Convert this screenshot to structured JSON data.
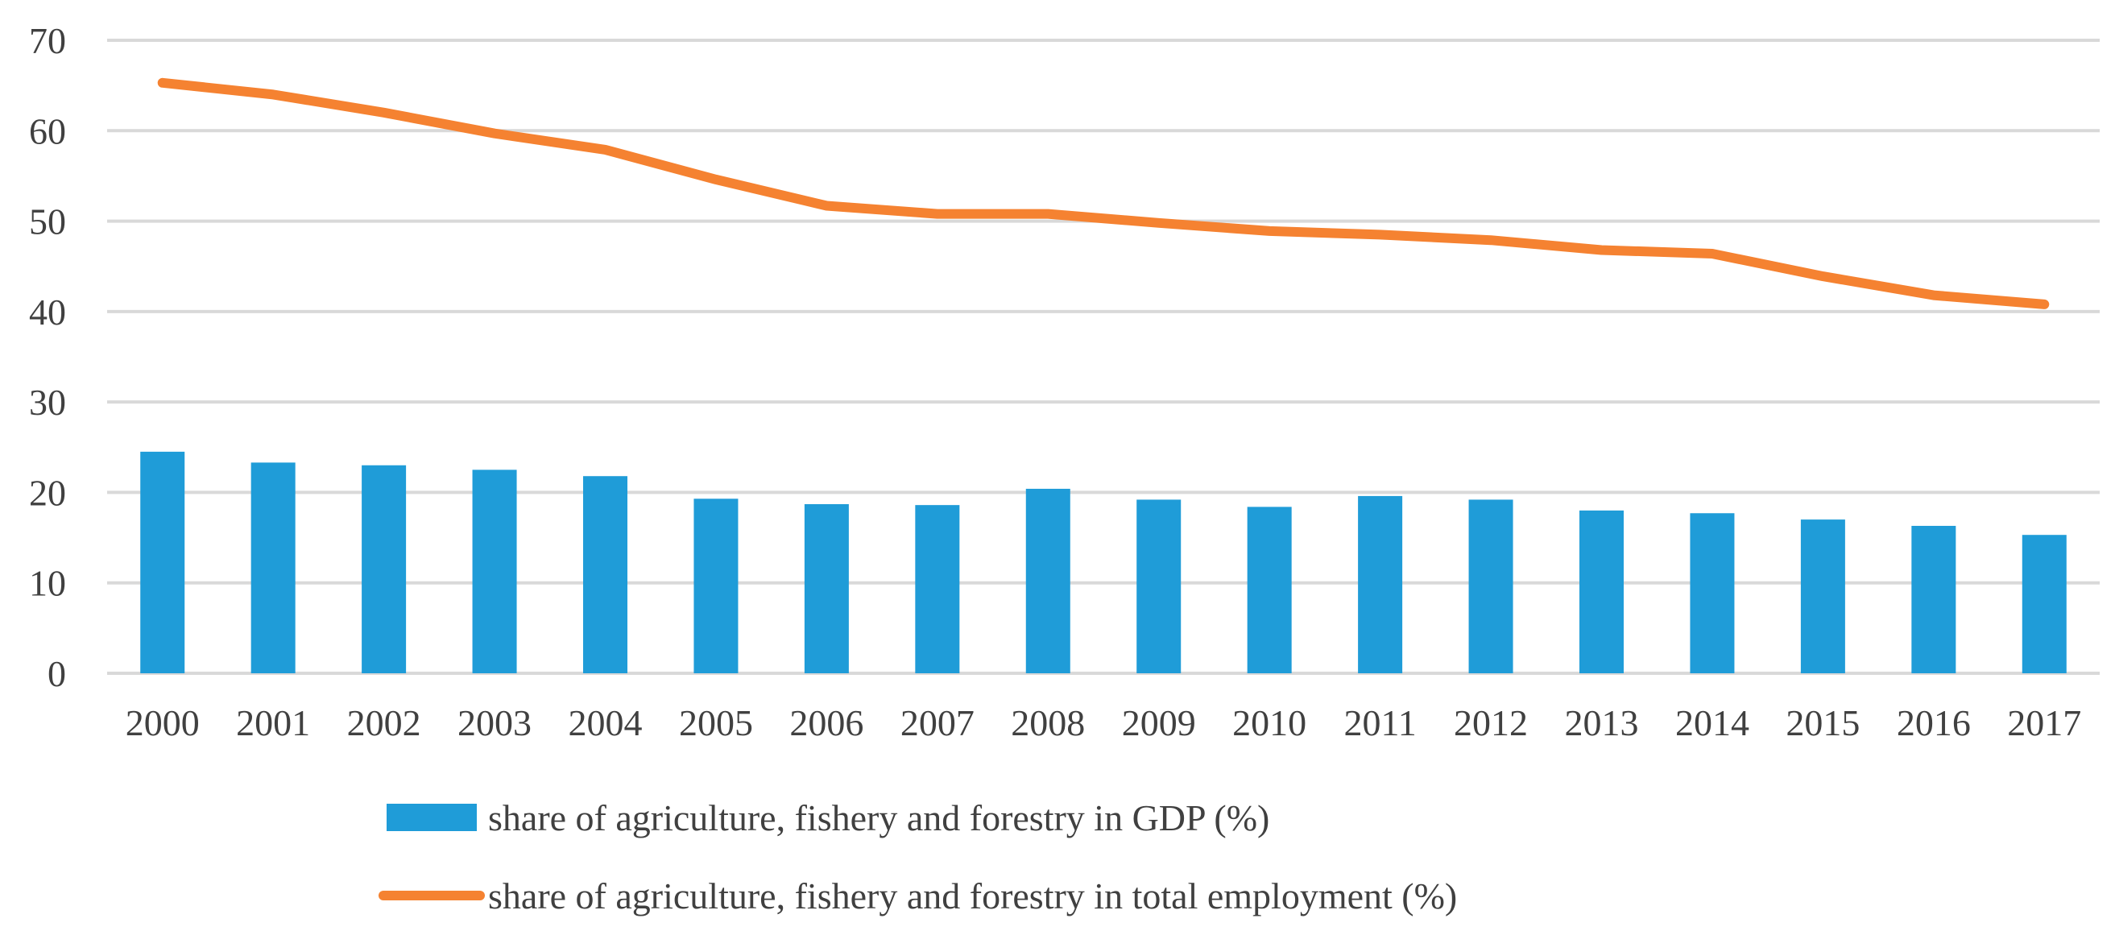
{
  "chart_data": {
    "type": "bar+line",
    "categories": [
      "2000",
      "2001",
      "2002",
      "2003",
      "2004",
      "2005",
      "2006",
      "2007",
      "2008",
      "2009",
      "2010",
      "2011",
      "2012",
      "2013",
      "2014",
      "2015",
      "2016",
      "2017"
    ],
    "series": [
      {
        "name": "share of agriculture, fishery and forestry in GDP (%)",
        "type": "bar",
        "color": "#1f9cd8",
        "values": [
          24.5,
          23.3,
          23.0,
          22.5,
          21.8,
          19.3,
          18.7,
          18.6,
          20.4,
          19.2,
          18.4,
          19.6,
          19.2,
          18.0,
          17.7,
          17.0,
          16.3,
          15.3
        ]
      },
      {
        "name": "share of agriculture, fishery and forestry in total employment (%)",
        "type": "line",
        "color": "#f58231",
        "values": [
          65.3,
          64.0,
          62.0,
          59.7,
          57.9,
          54.6,
          51.7,
          50.8,
          50.8,
          49.8,
          48.9,
          48.5,
          47.9,
          46.8,
          46.4,
          43.9,
          41.8,
          40.8
        ]
      }
    ],
    "ylim": [
      0,
      70
    ],
    "yticks": [
      "0",
      "10",
      "20",
      "30",
      "40",
      "50",
      "60",
      "70"
    ],
    "grid": true,
    "legend_position": "bottom"
  }
}
